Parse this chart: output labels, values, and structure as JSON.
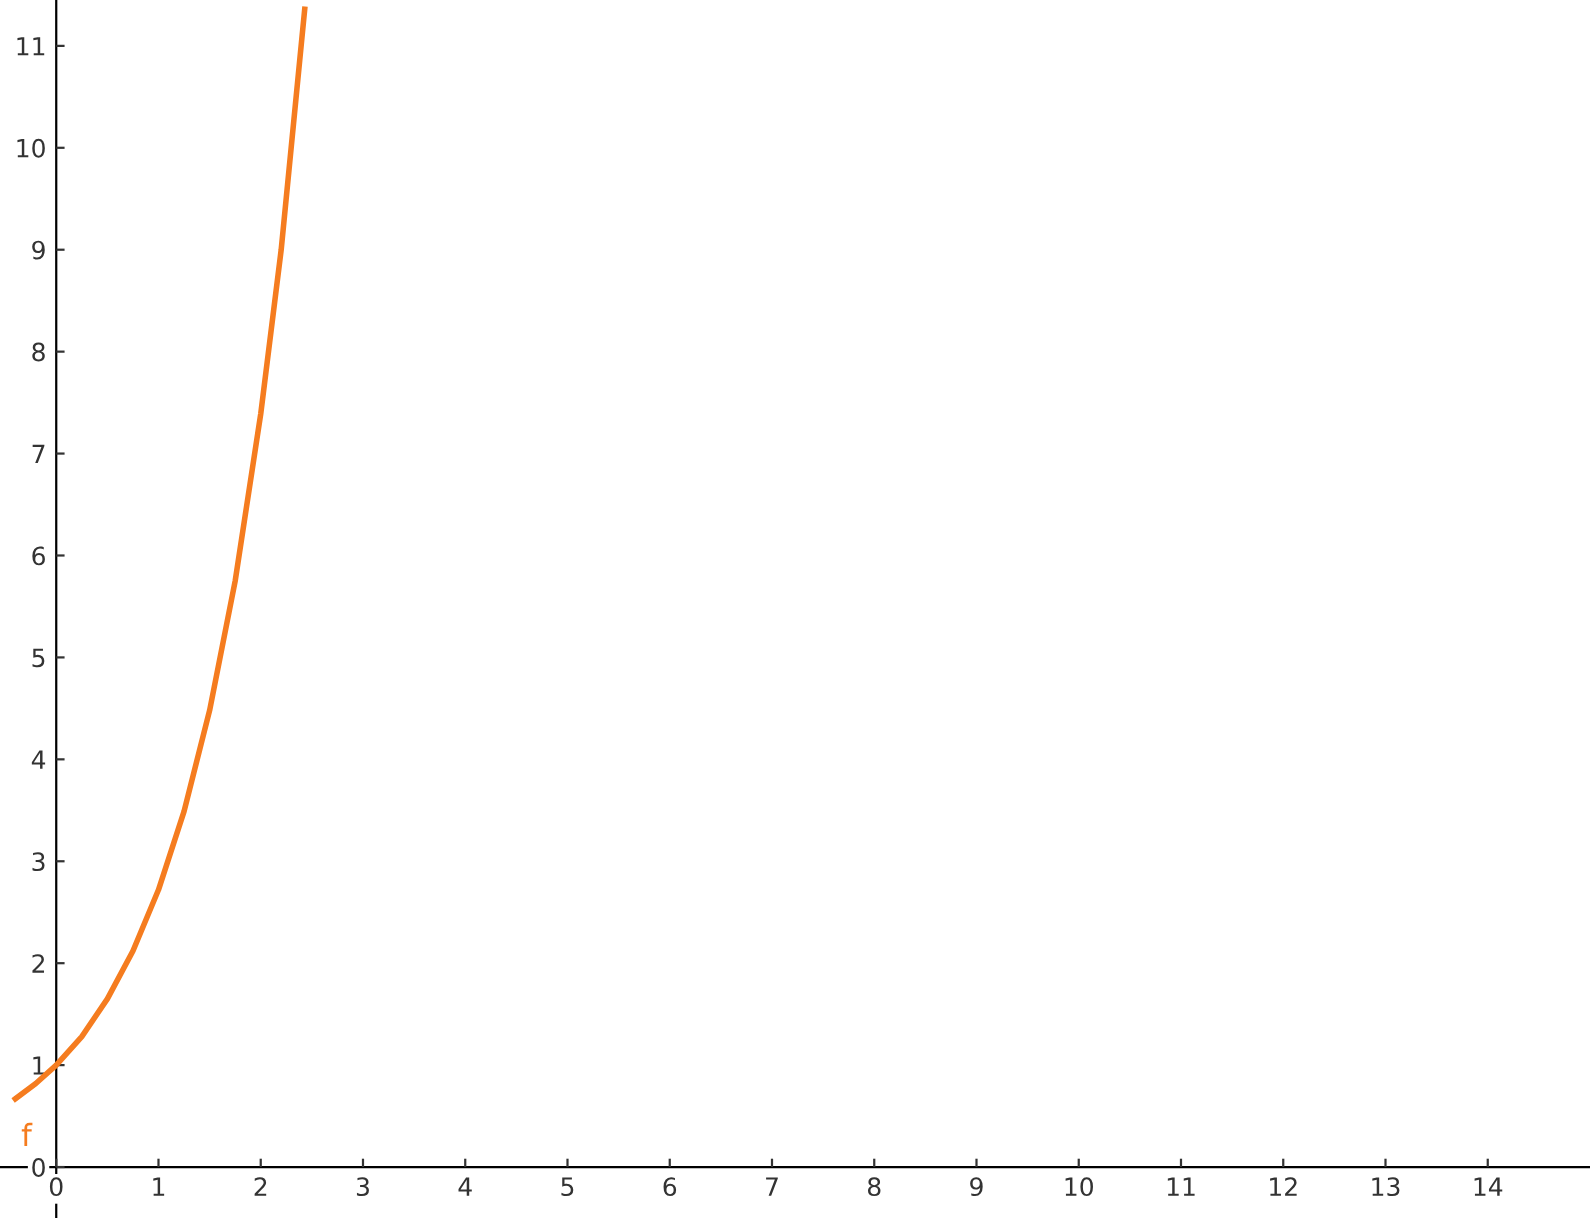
{
  "chart_data": {
    "type": "line",
    "x": [
      -0.4,
      -0.2,
      0,
      0.25,
      0.5,
      0.75,
      1,
      1.25,
      1.5,
      1.75,
      2,
      2.2,
      2.43
    ],
    "series": [
      {
        "color": "#f57c1f",
        "values": [
          0.67,
          0.82,
          1,
          1.28,
          1.65,
          2.12,
          2.72,
          3.49,
          4.48,
          5.75,
          7.39,
          9.0,
          11.36
        ]
      }
    ],
    "annotations": [
      "f"
    ],
    "xlim": [
      -0.55,
      15.0
    ],
    "ylim": [
      -0.5,
      11.45
    ],
    "xticks": [
      0,
      1,
      2,
      3,
      4,
      5,
      6,
      7,
      8,
      9,
      10,
      11,
      12,
      13,
      14
    ],
    "yticks": [
      0,
      1,
      2,
      3,
      4,
      5,
      6,
      7,
      8,
      9,
      10,
      11
    ],
    "legend": false,
    "marker": "none",
    "line_style": "solid"
  }
}
